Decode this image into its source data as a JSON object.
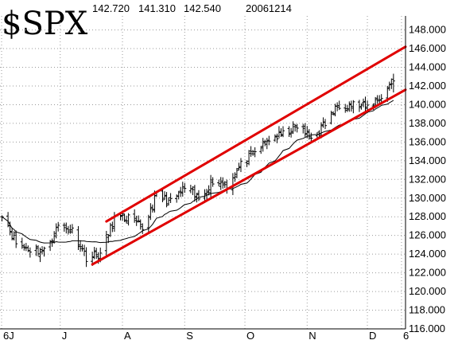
{
  "chart_data": {
    "type": "ohlc",
    "symbol": "$SPX",
    "header_values": [
      "142.720",
      "141.310",
      "142.540",
      "20061214"
    ],
    "x_tick_labels": [
      "6J",
      "J",
      "A",
      "S",
      "O",
      "N",
      "D",
      "6"
    ],
    "x_tick_months": [
      [
        2006,
        6
      ],
      [
        2006,
        7
      ],
      [
        2006,
        8
      ],
      [
        2006,
        9
      ],
      [
        2006,
        10
      ],
      [
        2006,
        11
      ],
      [
        2006,
        12
      ]
    ],
    "x_last_tick_date": "2006-12-18",
    "x_range": [
      "2006-06-01",
      "2006-12-20"
    ],
    "y_tick_labels": [
      "148.000",
      "146.000",
      "144.000",
      "142.000",
      "140.000",
      "138.000",
      "136.000",
      "134.000",
      "132.000",
      "130.000",
      "128.000",
      "126.000",
      "124.000",
      "122.000",
      "120.000",
      "118.000",
      "116.000"
    ],
    "ylim": [
      116,
      149.5
    ],
    "grid": true,
    "series": [
      {
        "style": "ohlc bars",
        "weekly_closes": [
          [
            "2006-06-02",
            128.5
          ],
          [
            "2006-06-09",
            125.2
          ],
          [
            "2006-06-16",
            124.5
          ],
          [
            "2006-06-23",
            124.3
          ],
          [
            "2006-06-30",
            127.0
          ],
          [
            "2006-07-07",
            126.5
          ],
          [
            "2006-07-14",
            123.7
          ],
          [
            "2006-07-21",
            124.0
          ],
          [
            "2006-07-28",
            127.8
          ],
          [
            "2006-08-04",
            127.9
          ],
          [
            "2006-08-11",
            126.7
          ],
          [
            "2006-08-18",
            130.3
          ],
          [
            "2006-08-25",
            129.5
          ],
          [
            "2006-09-01",
            131.1
          ],
          [
            "2006-09-08",
            129.9
          ],
          [
            "2006-09-15",
            131.9
          ],
          [
            "2006-09-22",
            131.4
          ],
          [
            "2006-09-29",
            133.5
          ],
          [
            "2006-10-06",
            134.9
          ],
          [
            "2006-10-13",
            136.3
          ],
          [
            "2006-10-20",
            136.8
          ],
          [
            "2006-10-27",
            137.7
          ],
          [
            "2006-11-03",
            136.4
          ],
          [
            "2006-11-10",
            138.0
          ],
          [
            "2006-11-17",
            140.1
          ],
          [
            "2006-11-24",
            140.0
          ],
          [
            "2006-12-01",
            139.7
          ],
          [
            "2006-12-08",
            140.9
          ],
          [
            "2006-12-14",
            142.54
          ]
        ]
      },
      {
        "style": "moving average",
        "window_days": 20
      }
    ],
    "trend_lines": [
      {
        "role": "upper",
        "color": "#e00000",
        "from": [
          "2006-07-24",
          127.5
        ],
        "to": [
          "2006-12-20",
          146.2
        ]
      },
      {
        "role": "lower",
        "color": "#e00000",
        "from": [
          "2006-07-17",
          122.9
        ],
        "to": [
          "2006-12-20",
          141.6
        ]
      }
    ]
  }
}
